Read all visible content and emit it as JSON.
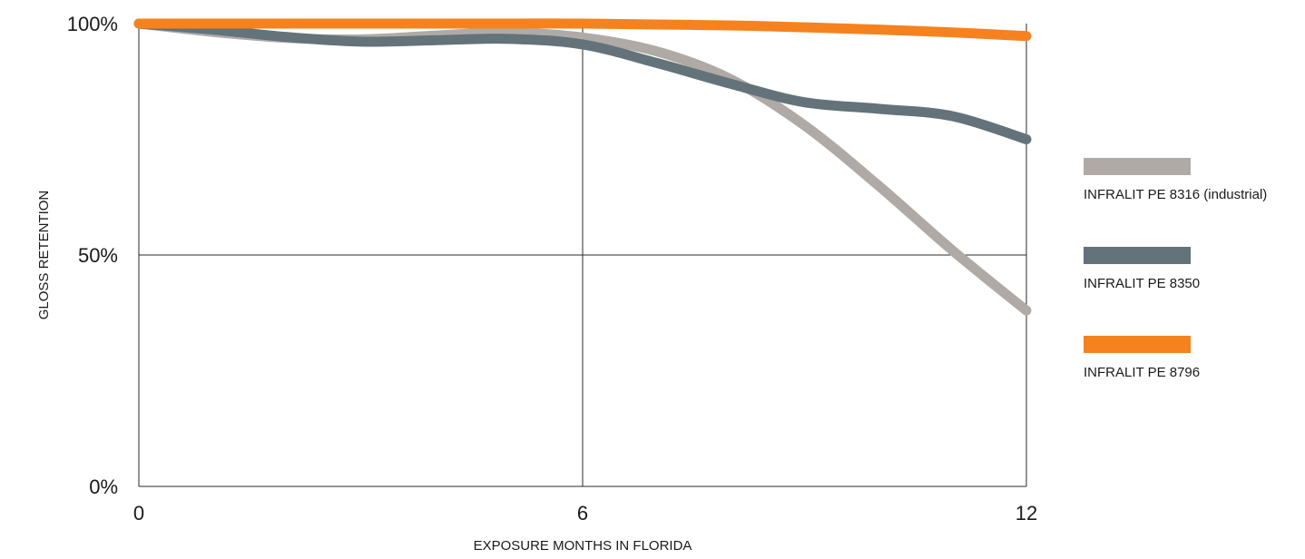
{
  "chart_data": {
    "type": "line",
    "title": "",
    "xlabel": "EXPOSURE MONTHS IN FLORIDA",
    "ylabel": "GLOSS RETENTION",
    "xlim": [
      0,
      12
    ],
    "ylim": [
      0,
      100
    ],
    "x_ticks": [
      0,
      6,
      12
    ],
    "x_tick_labels": [
      "0",
      "6",
      "12"
    ],
    "y_ticks": [
      0,
      50,
      100
    ],
    "y_tick_labels": [
      "0%",
      "50%",
      "100%"
    ],
    "grid": true,
    "legend_position": "right",
    "series": [
      {
        "name": "INFRALIT PE 8316 (industrial)",
        "color": "#b0aaa6",
        "x": [
          0,
          1,
          2,
          3,
          4,
          5,
          6,
          7,
          8,
          9,
          10,
          11,
          12
        ],
        "y": [
          100,
          98.2,
          96.9,
          96.6,
          97.4,
          98.1,
          97,
          94,
          88,
          78,
          65,
          51,
          38
        ]
      },
      {
        "name": "INFRALIT PE 8350",
        "color": "#637379",
        "x": [
          0,
          1,
          2,
          3,
          4,
          5,
          6,
          7,
          8,
          9,
          10,
          11,
          12
        ],
        "y": [
          100,
          98.7,
          97.1,
          96.1,
          96.4,
          96.7,
          95.5,
          91.5,
          87,
          83,
          81.6,
          80,
          75
        ]
      },
      {
        "name": "INFRALIT PE 8796",
        "color": "#f5821f",
        "x": [
          0,
          1,
          2,
          3,
          4,
          5,
          6,
          7,
          8,
          9,
          10,
          11,
          12
        ],
        "y": [
          100,
          100,
          100,
          100,
          100,
          100,
          100,
          99.8,
          99.6,
          99.2,
          98.7,
          98.1,
          97.3
        ]
      }
    ]
  }
}
